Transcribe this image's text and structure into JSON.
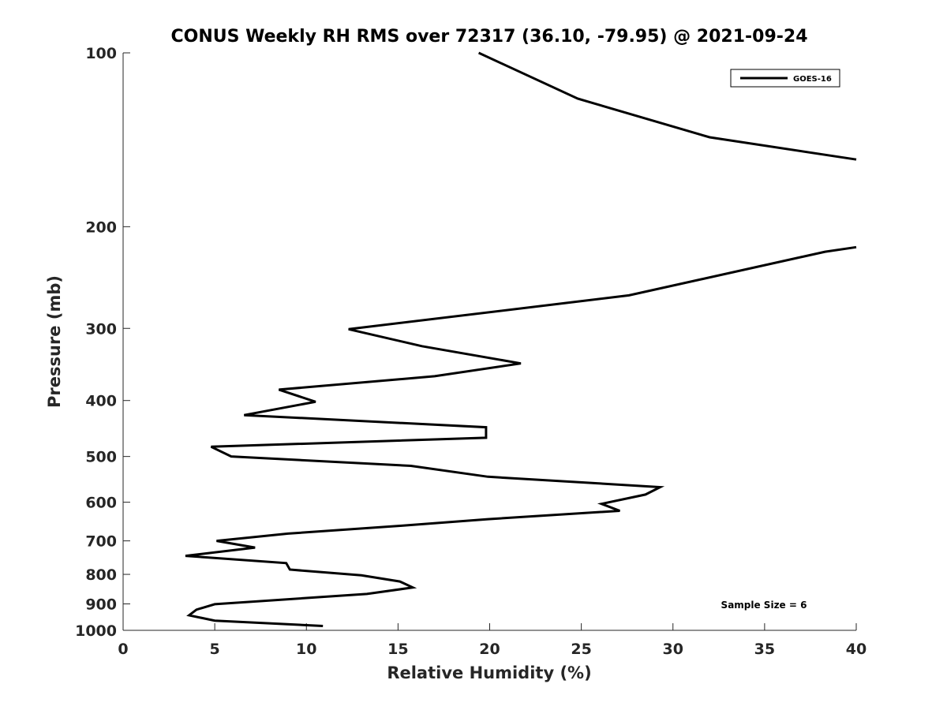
{
  "chart_data": {
    "type": "line",
    "title": "CONUS Weekly RH RMS over 72317 (36.10, -79.95) @ 2021-09-24",
    "xlabel": "Relative Humidity (%)",
    "ylabel": "Pressure (mb)",
    "xlim": [
      0,
      40
    ],
    "ylim": [
      100,
      1000
    ],
    "y_scale": "log",
    "y_reversed": true,
    "x_ticks": [
      0,
      5,
      10,
      15,
      20,
      25,
      30,
      35,
      40
    ],
    "y_ticks": [
      100,
      200,
      300,
      400,
      500,
      600,
      700,
      800,
      900,
      1000
    ],
    "grid": false,
    "legend": {
      "position": "top-right",
      "entries": [
        "GOES-16"
      ]
    },
    "series": [
      {
        "name": "GOES-16",
        "color": "#000000",
        "segments": [
          [
            {
              "x": 19.4,
              "p": 100
            },
            {
              "x": 24.8,
              "p": 120
            },
            {
              "x": 32.0,
              "p": 140
            },
            {
              "x": 40.0,
              "p": 153
            }
          ],
          [
            {
              "x": 40.0,
              "p": 217
            },
            {
              "x": 38.3,
              "p": 221
            },
            {
              "x": 27.6,
              "p": 263
            },
            {
              "x": 12.3,
              "p": 301
            },
            {
              "x": 16.3,
              "p": 322
            },
            {
              "x": 21.7,
              "p": 345
            },
            {
              "x": 17.0,
              "p": 363
            },
            {
              "x": 8.5,
              "p": 383
            },
            {
              "x": 10.5,
              "p": 402
            },
            {
              "x": 6.6,
              "p": 424
            },
            {
              "x": 19.8,
              "p": 445
            },
            {
              "x": 19.8,
              "p": 464
            },
            {
              "x": 4.8,
              "p": 481
            },
            {
              "x": 5.9,
              "p": 500
            },
            {
              "x": 15.7,
              "p": 519
            },
            {
              "x": 19.9,
              "p": 542
            },
            {
              "x": 29.3,
              "p": 565
            },
            {
              "x": 28.5,
              "p": 582
            },
            {
              "x": 26.1,
              "p": 604
            },
            {
              "x": 27.1,
              "p": 621
            },
            {
              "x": 19.9,
              "p": 642
            },
            {
              "x": 15.2,
              "p": 659
            },
            {
              "x": 9.0,
              "p": 680
            },
            {
              "x": 5.1,
              "p": 700
            },
            {
              "x": 7.2,
              "p": 719
            },
            {
              "x": 3.4,
              "p": 743
            },
            {
              "x": 8.9,
              "p": 765
            },
            {
              "x": 9.1,
              "p": 785
            },
            {
              "x": 13.0,
              "p": 803
            },
            {
              "x": 15.1,
              "p": 823
            },
            {
              "x": 15.8,
              "p": 843
            },
            {
              "x": 13.3,
              "p": 865
            },
            {
              "x": 5.0,
              "p": 901
            },
            {
              "x": 4.0,
              "p": 921
            },
            {
              "x": 3.6,
              "p": 942
            },
            {
              "x": 5.0,
              "p": 962
            },
            {
              "x": 10.9,
              "p": 983
            }
          ]
        ]
      }
    ],
    "annotations": [
      "Sample Size = 6"
    ]
  }
}
